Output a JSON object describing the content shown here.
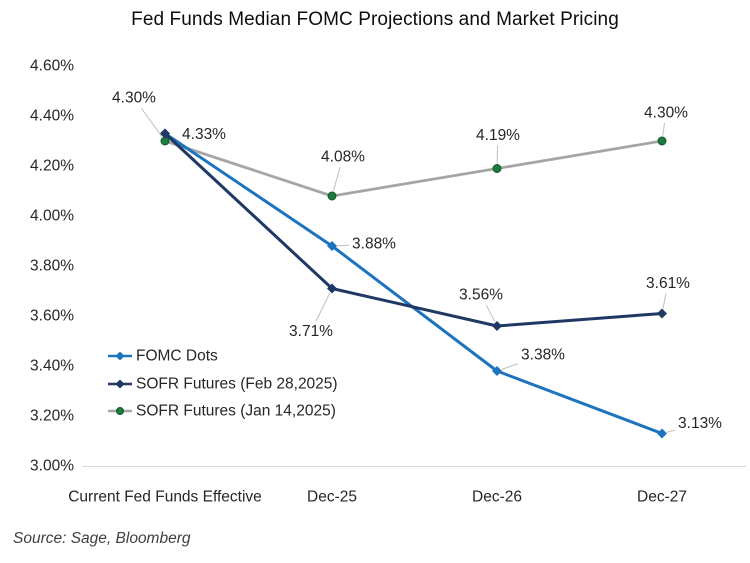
{
  "title": "Fed Funds Median FOMC Projections and Market Pricing",
  "source": "Source: Sage, Bloomberg",
  "chart_data": {
    "type": "line",
    "title": "Fed Funds Median FOMC Projections and Market Pricing",
    "categories": [
      "Current Fed Funds Effective",
      "Dec-25",
      "Dec-26",
      "Dec-27"
    ],
    "series": [
      {
        "name": "FOMC Dots",
        "color": "#1E73BE",
        "marker": "diamond",
        "marker_color": "#1E73BE",
        "values": [
          4.33,
          3.88,
          3.38,
          3.13
        ],
        "point_labels": [
          null,
          "3.88%",
          "3.38%",
          "3.13%"
        ]
      },
      {
        "name": "SOFR Futures (Feb 28,2025)",
        "color": "#1F3864",
        "marker": "diamond",
        "marker_color": "#1F3864",
        "values": [
          4.33,
          3.71,
          3.56,
          3.61
        ],
        "point_labels": [
          "4.33%",
          "3.71%",
          "3.56%",
          "3.61%"
        ]
      },
      {
        "name": "SOFR Futures (Jan 14,2025)",
        "color": "#A6A6A6",
        "marker": "circle",
        "marker_color": "#1E7B3D",
        "marker_stroke": "#145A2C",
        "values": [
          4.3,
          4.08,
          4.19,
          4.3
        ],
        "point_labels": [
          "4.30%",
          "4.08%",
          "4.19%",
          "4.30%"
        ]
      }
    ],
    "ylim": [
      3.0,
      4.6
    ],
    "ytick_step": 0.2,
    "yticks": [
      "4.60%",
      "4.40%",
      "4.20%",
      "4.00%",
      "3.80%",
      "3.60%",
      "3.40%",
      "3.20%",
      "3.00%"
    ],
    "grid": false,
    "legend_position": "inside bottom-left",
    "axis_color": "#D9D9D9",
    "leader_color": "#BFBFBF",
    "label_color": "#262626"
  }
}
